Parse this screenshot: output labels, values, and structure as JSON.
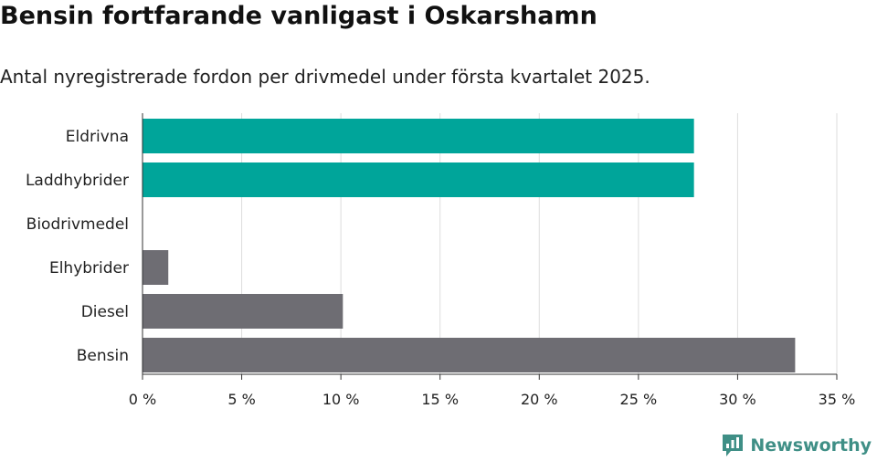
{
  "header": {
    "title": "Bensin fortfarande vanligast i Oskarshamn",
    "subtitle": "Antal nyregistrerade fordon per drivmedel under första kvartalet 2025."
  },
  "brand": {
    "name": "Newsworthy",
    "color": "#3f8f86",
    "icon": "newsworthy-logo-icon"
  },
  "colors": {
    "highlight": "#00a59a",
    "base": "#6e6d73",
    "grid": "#dddddd",
    "axis": "#333333"
  },
  "chart_data": {
    "type": "bar",
    "orientation": "horizontal",
    "categories": [
      "Eldrivna",
      "Laddhybrider",
      "Biodrivmedel",
      "Elhybrider",
      "Diesel",
      "Bensin"
    ],
    "values": [
      27.8,
      27.8,
      0,
      1.3,
      10.1,
      32.9
    ],
    "highlighted": [
      true,
      true,
      false,
      false,
      false,
      false
    ],
    "xlim": [
      0,
      35
    ],
    "xticks": [
      0,
      5,
      10,
      15,
      20,
      25,
      30,
      35
    ],
    "xtick_labels": [
      "0 %",
      "5 %",
      "10 %",
      "15 %",
      "20 %",
      "25 %",
      "30 %",
      "35 %"
    ],
    "grid": true,
    "title": "Bensin fortfarande vanligast i Oskarshamn",
    "subtitle": "Antal nyregistrerade fordon per drivmedel under första kvartalet 2025.",
    "xlabel": "",
    "ylabel": ""
  }
}
